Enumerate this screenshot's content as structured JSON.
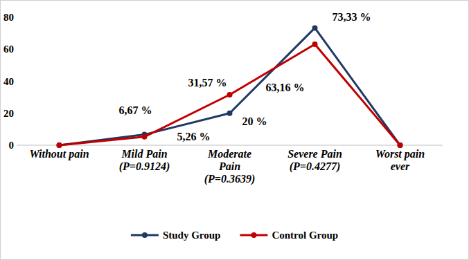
{
  "chart_data": {
    "type": "line",
    "categories": [
      "Without pain",
      "Mild Pain (P=0.9124)",
      "Moderate Pain (P=0.3639)",
      "Severe Pain (P=0.4277)",
      "Worst pain ever"
    ],
    "series": [
      {
        "name": "Study Group",
        "color": "#1f3864",
        "marker": "circle",
        "line_style": "solid",
        "values": [
          0,
          6.67,
          20,
          73.33,
          0
        ],
        "value_labels": [
          null,
          "6,67 %",
          "20 %",
          "73,33 %",
          null
        ]
      },
      {
        "name": "Control Group",
        "color": "#c00000",
        "marker": "circle",
        "line_style": "solid",
        "values": [
          0,
          5.26,
          31.57,
          63.16,
          0
        ],
        "value_labels": [
          null,
          "5,26 %",
          "31,57 %",
          "63,16 %",
          null
        ]
      }
    ],
    "ylim": [
      0,
      80
    ],
    "yticks": [
      0,
      20,
      40,
      60,
      80
    ],
    "grid": false,
    "legend": "bottom",
    "data_labels": true
  }
}
